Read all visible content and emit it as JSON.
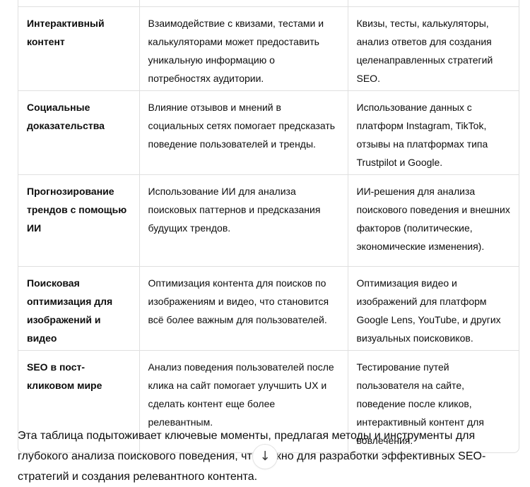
{
  "table": {
    "rows": [
      {
        "topic": "Интерактивный контент",
        "description": "Взаимодействие с квизами, тестами и калькуляторами может предоставить уникальную информацию о потребностях аудитории.",
        "tools": "Квизы, тесты, калькуляторы, анализ ответов для создания целенаправленных стратегий SEO."
      },
      {
        "topic": "Социальные доказательства",
        "description": "Влияние отзывов и мнений в социальных сетях помогает предсказать поведение пользователей и тренды.",
        "tools": "Использование данных с платформ Instagram, TikTok, отзывы на платформах типа Trustpilot и Google."
      },
      {
        "topic": "Прогнозирование трендов с помощью ИИ",
        "description": "Использование ИИ для анализа поисковых паттернов и предсказания будущих трендов.",
        "tools": "ИИ-решения для анализа поискового поведения и внешних факторов (политические, экономические изменения)."
      },
      {
        "topic": "Поисковая оптимизация для изображений и видео",
        "description": "Оптимизация контента для поисков по изображениям и видео, что становится всё более важным для пользователей.",
        "tools": "Оптимизация видео и изображений для платформ Google Lens, YouTube, и других визуальных поисковиков."
      },
      {
        "topic": "SEO в пост-кликовом мире",
        "description": "Анализ поведения пользователей после клика на сайт помогает улучшить UX и сделать контент еще более релевантным.",
        "tools": "Тестирование путей пользователя на сайте, поведение после кликов, интерактивный контент для вовлечения."
      }
    ]
  },
  "summary": {
    "text": "Эта таблица подытоживает ключевые моменты, предлагая методы и инструменты для глубокого анализа поискового поведения, что важно для разработки эффективных SEO-стратегий и создания релевантного контента."
  },
  "scroll_button": {
    "icon": "↓"
  },
  "colors": {
    "border": "#e0e0e0",
    "text": "#0d0d0d",
    "background": "#ffffff"
  }
}
